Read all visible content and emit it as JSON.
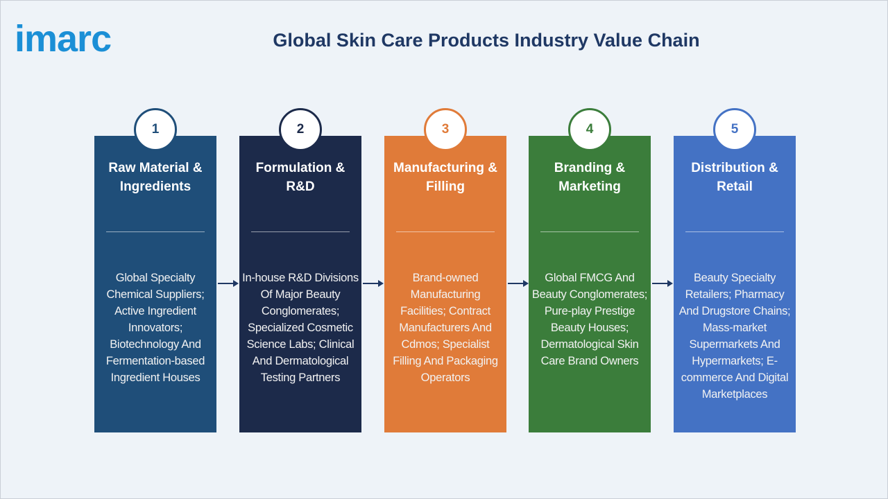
{
  "logo": "imarc",
  "title": "Global Skin Care Products Industry Value Chain",
  "steps": [
    {
      "number": "1",
      "title": "Raw Material & Ingredients",
      "description": "Global Specialty Chemical Suppliers; Active Ingredient Innovators; Biotechnology And Fermentation-based Ingredient Houses"
    },
    {
      "number": "2",
      "title": "Formulation & R&D",
      "description": "In-house R&D Divisions Of Major Beauty Conglomerates; Specialized Cosmetic Science Labs; Clinical And Dermatological Testing Partners"
    },
    {
      "number": "3",
      "title": "Manufacturing & Filling",
      "description": "Brand-owned Manufacturing Facilities; Contract Manufacturers And Cdmos; Specialist Filling And Packaging Operators"
    },
    {
      "number": "4",
      "title": "Branding & Marketing",
      "description": "Global FMCG And Beauty Conglomerates; Pure-play Prestige Beauty Houses; Dermatological Skin Care Brand Owners"
    },
    {
      "number": "5",
      "title": "Distribution & Retail",
      "description": "Beauty Specialty Retailers; Pharmacy And Drugstore Chains; Mass-market Supermarkets And Hypermarkets; E-commerce And Digital Marketplaces"
    }
  ]
}
